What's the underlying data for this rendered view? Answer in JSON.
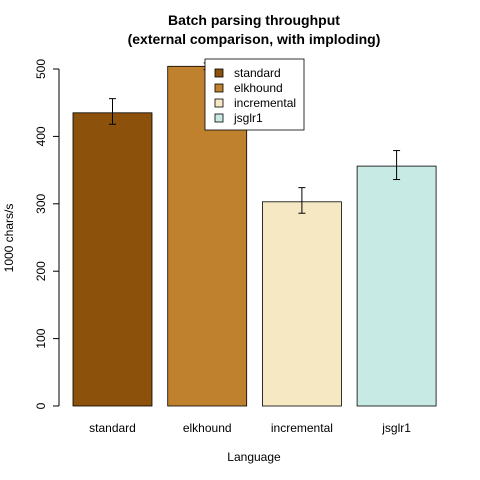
{
  "chart_data": {
    "type": "bar",
    "title": [
      "Batch parsing throughput",
      "(external comparison, with imploding)"
    ],
    "xlabel": "Language",
    "ylabel": "1000 chars/s",
    "categories": [
      "standard",
      "elkhound",
      "incremental",
      "jsglr1"
    ],
    "values": [
      435,
      504,
      303,
      356
    ],
    "error_low": [
      418,
      499,
      286,
      336
    ],
    "error_high": [
      456,
      509,
      324,
      379
    ],
    "colors": [
      "#8c510a",
      "#bf812d",
      "#f6e8c3",
      "#c7eae5"
    ],
    "ylim": [
      0,
      510
    ],
    "yticks": [
      0,
      100,
      200,
      300,
      400,
      500
    ],
    "legend": {
      "placement": "top-center",
      "entries": [
        "standard",
        "elkhound",
        "incremental",
        "jsglr1"
      ]
    },
    "grid": false
  }
}
